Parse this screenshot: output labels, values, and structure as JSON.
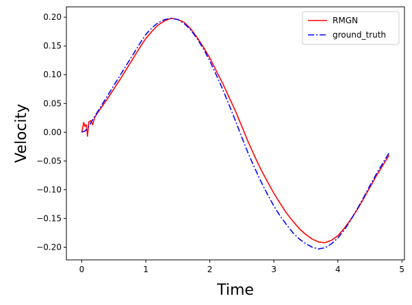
{
  "chart_data": {
    "type": "line",
    "title": "",
    "xlabel": "Time",
    "ylabel": "Velocity",
    "xlim": [
      -0.24,
      5.04
    ],
    "ylim": [
      -0.222,
      0.218
    ],
    "xticks": [
      0,
      1,
      2,
      3,
      4,
      5
    ],
    "xtick_labels": [
      "0",
      "1",
      "2",
      "3",
      "4",
      "5"
    ],
    "yticks": [
      -0.2,
      -0.15,
      -0.1,
      -0.05,
      0.0,
      0.05,
      0.1,
      0.15,
      0.2
    ],
    "ytick_labels": [
      "−0.20",
      "−0.15",
      "−0.10",
      "−0.05",
      "0.00",
      "0.05",
      "0.10",
      "0.15",
      "0.20"
    ],
    "grid": false,
    "legend": {
      "placement": "top-right"
    },
    "series": [
      {
        "name": "RMGN",
        "color": "#ff0000",
        "style": "solid",
        "x": [
          0.0,
          0.03,
          0.05,
          0.07,
          0.09,
          0.11,
          0.14,
          0.17,
          0.2,
          0.23,
          0.3,
          0.4,
          0.5,
          0.6,
          0.7,
          0.8,
          0.9,
          1.0,
          1.1,
          1.2,
          1.3,
          1.4,
          1.5,
          1.6,
          1.7,
          1.8,
          1.9,
          2.0,
          2.1,
          2.2,
          2.3,
          2.4,
          2.5,
          2.6,
          2.7,
          2.8,
          2.9,
          3.0,
          3.1,
          3.2,
          3.3,
          3.4,
          3.5,
          3.6,
          3.7,
          3.8,
          3.9,
          4.0,
          4.1,
          4.2,
          4.3,
          4.4,
          4.5,
          4.6,
          4.7,
          4.8
        ],
        "y": [
          0.0,
          0.017,
          0.01,
          0.013,
          -0.007,
          0.018,
          0.02,
          0.013,
          0.025,
          0.031,
          0.042,
          0.058,
          0.075,
          0.092,
          0.11,
          0.128,
          0.146,
          0.163,
          0.176,
          0.187,
          0.194,
          0.198,
          0.196,
          0.191,
          0.18,
          0.165,
          0.148,
          0.129,
          0.107,
          0.085,
          0.061,
          0.037,
          0.01,
          -0.017,
          -0.042,
          -0.065,
          -0.086,
          -0.106,
          -0.124,
          -0.141,
          -0.155,
          -0.168,
          -0.178,
          -0.186,
          -0.191,
          -0.192,
          -0.188,
          -0.18,
          -0.167,
          -0.152,
          -0.135,
          -0.116,
          -0.096,
          -0.076,
          -0.058,
          -0.04
        ]
      },
      {
        "name": "ground_truth",
        "color": "#0000ff",
        "style": "dashdot",
        "x": [
          0.0,
          0.05,
          0.1,
          0.15,
          0.2,
          0.3,
          0.4,
          0.5,
          0.6,
          0.7,
          0.8,
          0.9,
          1.0,
          1.1,
          1.2,
          1.3,
          1.4,
          1.5,
          1.6,
          1.7,
          1.8,
          1.9,
          2.0,
          2.1,
          2.2,
          2.3,
          2.4,
          2.5,
          2.6,
          2.7,
          2.8,
          2.9,
          3.0,
          3.1,
          3.2,
          3.3,
          3.4,
          3.5,
          3.6,
          3.7,
          3.8,
          3.9,
          4.0,
          4.1,
          4.2,
          4.3,
          4.4,
          4.5,
          4.6,
          4.7,
          4.8
        ],
        "y": [
          0.0,
          0.002,
          0.008,
          0.018,
          0.027,
          0.045,
          0.063,
          0.081,
          0.099,
          0.117,
          0.135,
          0.153,
          0.17,
          0.182,
          0.191,
          0.196,
          0.198,
          0.196,
          0.189,
          0.178,
          0.163,
          0.145,
          0.124,
          0.1,
          0.075,
          0.048,
          0.02,
          -0.009,
          -0.037,
          -0.062,
          -0.086,
          -0.108,
          -0.128,
          -0.146,
          -0.161,
          -0.175,
          -0.186,
          -0.194,
          -0.2,
          -0.203,
          -0.201,
          -0.194,
          -0.184,
          -0.17,
          -0.153,
          -0.134,
          -0.114,
          -0.093,
          -0.073,
          -0.054,
          -0.036
        ]
      }
    ]
  }
}
